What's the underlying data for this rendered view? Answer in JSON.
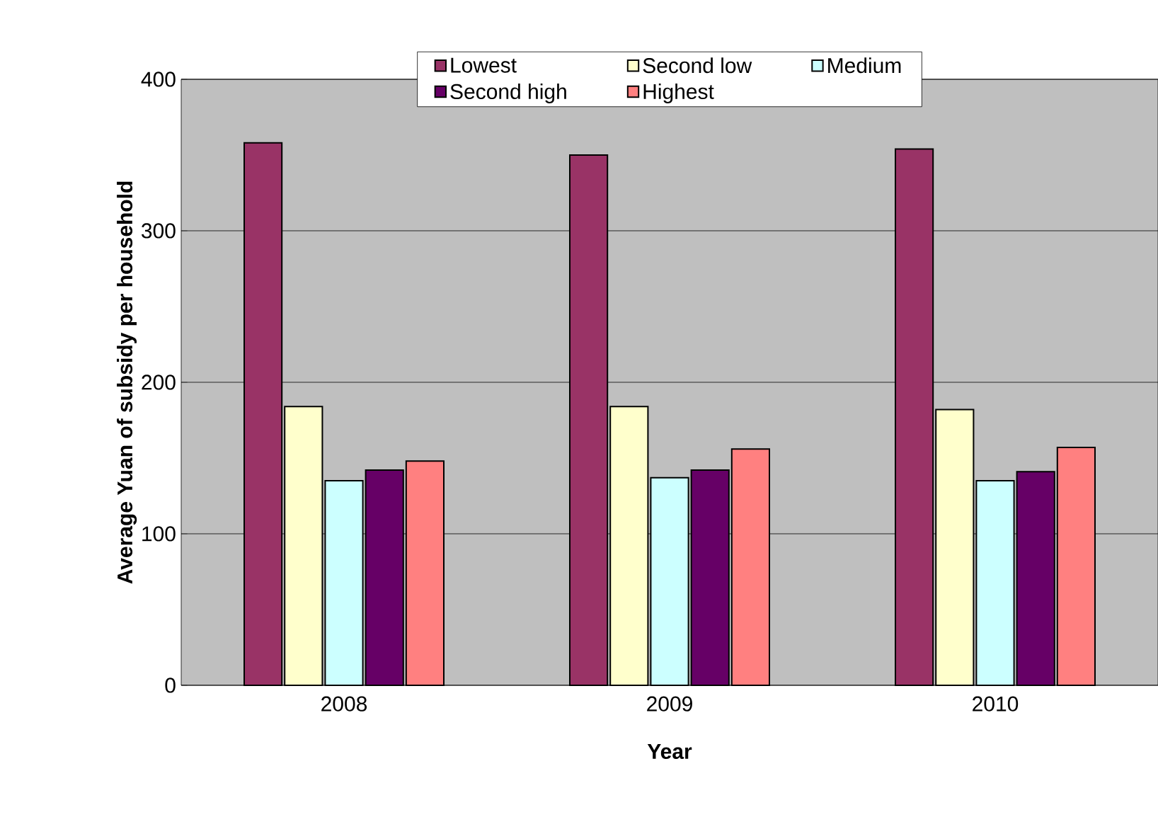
{
  "chart_data": {
    "type": "bar",
    "xlabel": "Year",
    "ylabel": "Average Yuan of subsidy per household",
    "categories": [
      "2008",
      "2009",
      "2010"
    ],
    "series": [
      {
        "name": "Lowest",
        "color": "#993366",
        "values": [
          358,
          350,
          354
        ]
      },
      {
        "name": "Second low",
        "color": "#ffffcc",
        "values": [
          184,
          184,
          182
        ]
      },
      {
        "name": "Medium",
        "color": "#ccffff",
        "values": [
          135,
          137,
          135
        ]
      },
      {
        "name": "Second high",
        "color": "#660066",
        "values": [
          142,
          142,
          141
        ]
      },
      {
        "name": "Highest",
        "color": "#ff8080",
        "values": [
          148,
          156,
          157
        ]
      }
    ],
    "ylim": [
      0,
      400
    ],
    "yticks": [
      0,
      100,
      200,
      300,
      400
    ],
    "grid": "y",
    "legend": "top"
  }
}
